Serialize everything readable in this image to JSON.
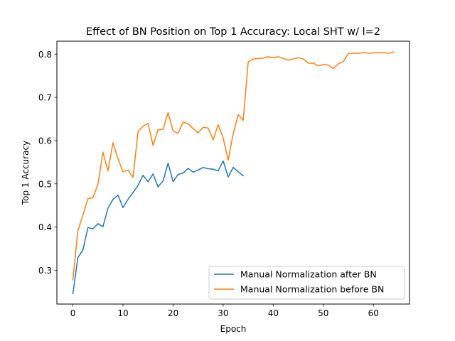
{
  "chart_data": {
    "type": "line",
    "title": "Effect of BN Position on Top 1 Accuracy: Local SHT w/ l=2",
    "xlabel": "Epoch",
    "ylabel": "Top 1 Accuracy",
    "xlim": [
      -3.2,
      67.2
    ],
    "ylim": [
      0.222,
      0.83
    ],
    "xticks": [
      0,
      10,
      20,
      30,
      40,
      50,
      60
    ],
    "yticks": [
      0.3,
      0.4,
      0.5,
      0.6,
      0.7,
      0.8
    ],
    "grid": false,
    "legend_position": "lower-right",
    "series": [
      {
        "name": "Manual Normalization after BN",
        "color": "#1f77b4",
        "x": [
          0,
          1,
          2,
          3,
          4,
          5,
          6,
          7,
          8,
          9,
          10,
          11,
          12,
          13,
          14,
          15,
          16,
          17,
          18,
          19,
          20,
          21,
          22,
          23,
          24,
          25,
          26,
          27,
          28,
          29,
          30,
          31,
          32,
          33,
          34
        ],
        "values": [
          0.246,
          0.33,
          0.347,
          0.399,
          0.396,
          0.408,
          0.401,
          0.444,
          0.464,
          0.474,
          0.445,
          0.464,
          0.48,
          0.496,
          0.52,
          0.505,
          0.523,
          0.493,
          0.507,
          0.548,
          0.505,
          0.522,
          0.525,
          0.536,
          0.527,
          0.532,
          0.538,
          0.535,
          0.534,
          0.53,
          0.553,
          0.516,
          0.538,
          0.528,
          0.519
        ]
      },
      {
        "name": "Manual Normalization before BN",
        "color": "#ff7f0e",
        "x": [
          0,
          1,
          2,
          3,
          4,
          5,
          6,
          7,
          8,
          9,
          10,
          11,
          12,
          13,
          14,
          15,
          16,
          17,
          18,
          19,
          20,
          21,
          22,
          23,
          24,
          25,
          26,
          27,
          28,
          29,
          30,
          31,
          32,
          33,
          34,
          35,
          36,
          37,
          38,
          39,
          40,
          41,
          42,
          43,
          44,
          45,
          46,
          47,
          48,
          49,
          50,
          51,
          52,
          53,
          54,
          55,
          56,
          57,
          58,
          59,
          60,
          61,
          62,
          63,
          64
        ],
        "values": [
          0.278,
          0.392,
          0.428,
          0.466,
          0.468,
          0.499,
          0.573,
          0.53,
          0.595,
          0.558,
          0.528,
          0.532,
          0.515,
          0.621,
          0.633,
          0.64,
          0.589,
          0.625,
          0.626,
          0.665,
          0.622,
          0.617,
          0.643,
          0.639,
          0.628,
          0.618,
          0.631,
          0.629,
          0.602,
          0.637,
          0.606,
          0.555,
          0.616,
          0.66,
          0.647,
          0.782,
          0.789,
          0.79,
          0.791,
          0.794,
          0.792,
          0.794,
          0.79,
          0.786,
          0.789,
          0.792,
          0.789,
          0.779,
          0.779,
          0.773,
          0.776,
          0.775,
          0.767,
          0.778,
          0.783,
          0.802,
          0.802,
          0.802,
          0.804,
          0.802,
          0.803,
          0.803,
          0.804,
          0.802,
          0.805
        ]
      }
    ]
  }
}
